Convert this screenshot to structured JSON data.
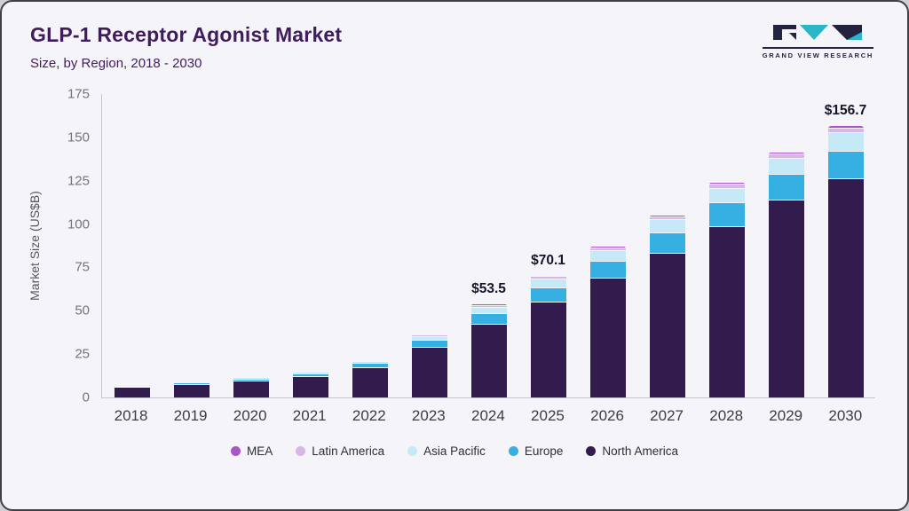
{
  "header": {
    "title": "GLP-1 Receptor Agonist Market",
    "subtitle": "Size, by Region, 2018 - 2030"
  },
  "logo": {
    "text": "GRAND VIEW RESEARCH",
    "dark_color": "#23233f",
    "teal_color": "#2ab5c8"
  },
  "chart_data": {
    "type": "bar",
    "stacked": true,
    "title": "GLP-1 Receptor Agonist Market Size, by Region, 2018 - 2030",
    "ylabel": "Market Size (US$B)",
    "xlabel": "",
    "ylim": [
      0,
      175
    ],
    "yticks": [
      0,
      25,
      50,
      75,
      100,
      125,
      150,
      175
    ],
    "grid": false,
    "legend_position": "bottom",
    "categories": [
      "2018",
      "2019",
      "2020",
      "2021",
      "2022",
      "2023",
      "2024",
      "2025",
      "2026",
      "2027",
      "2028",
      "2029",
      "2030"
    ],
    "series": [
      {
        "name": "North America",
        "color": "#321b4d",
        "values": [
          5.6,
          7.2,
          9.2,
          11.8,
          16.8,
          28.5,
          42.0,
          55.0,
          68.5,
          83.0,
          98.5,
          113.5,
          126.0
        ]
      },
      {
        "name": "Europe",
        "color": "#36b0e2",
        "values": [
          0.8,
          1.0,
          1.3,
          1.7,
          2.4,
          4.2,
          6.2,
          8.2,
          10.0,
          11.8,
          13.5,
          14.8,
          16.0
        ]
      },
      {
        "name": "Asia Pacific",
        "color": "#c6e9f8",
        "values": [
          0.4,
          0.5,
          0.7,
          0.9,
          1.3,
          2.3,
          3.6,
          4.9,
          6.0,
          7.3,
          8.5,
          9.5,
          10.5
        ]
      },
      {
        "name": "Latin America",
        "color": "#d7b6e9",
        "values": [
          0.1,
          0.2,
          0.2,
          0.3,
          0.4,
          0.7,
          1.1,
          1.4,
          1.7,
          2.0,
          2.3,
          2.5,
          2.7
        ]
      },
      {
        "name": "MEA",
        "color": "#a855c7",
        "values": [
          0.1,
          0.1,
          0.1,
          0.2,
          0.3,
          0.4,
          0.6,
          0.6,
          0.8,
          0.9,
          1.0,
          1.2,
          1.5
        ]
      }
    ],
    "totals": [
      7.0,
      9.0,
      11.5,
      14.9,
      21.2,
      36.1,
      53.5,
      70.1,
      87.0,
      105.0,
      123.8,
      141.5,
      156.7
    ],
    "annotations": [
      {
        "category": "2024",
        "label": "$53.5"
      },
      {
        "category": "2025",
        "label": "$70.1"
      },
      {
        "category": "2030",
        "label": "$156.7"
      }
    ],
    "legend_order": [
      "MEA",
      "Latin America",
      "Asia Pacific",
      "Europe",
      "North America"
    ]
  }
}
